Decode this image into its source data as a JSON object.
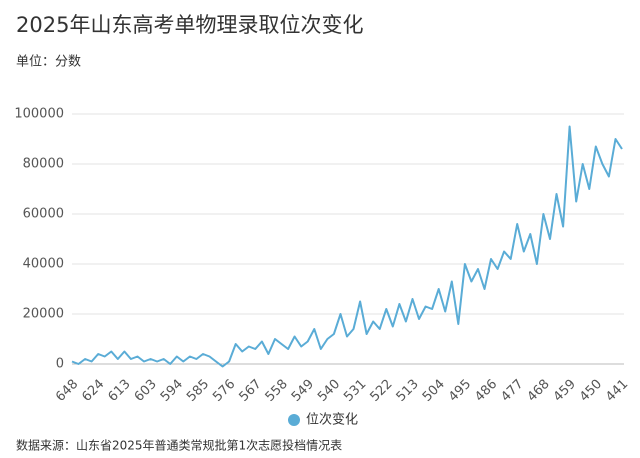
{
  "chart_data": {
    "type": "line",
    "title": "2025年山东高考单物理录取位次变化",
    "subtitle": "单位：分数",
    "source": "数据来源：山东省2025年普通类常规批第1次志愿投档情况表",
    "categories": [
      "648",
      null,
      null,
      null,
      "624",
      null,
      null,
      null,
      "613",
      null,
      null,
      null,
      "603",
      null,
      null,
      null,
      "594",
      null,
      null,
      null,
      "585",
      null,
      null,
      null,
      "576",
      null,
      null,
      null,
      "567",
      null,
      null,
      null,
      "558",
      null,
      null,
      null,
      "549",
      null,
      null,
      null,
      "540",
      null,
      null,
      null,
      "531",
      null,
      null,
      null,
      "522",
      null,
      null,
      null,
      "513",
      null,
      null,
      null,
      "504",
      null,
      null,
      null,
      "495",
      null,
      null,
      null,
      "486",
      null,
      null,
      null,
      "477",
      null,
      null,
      null,
      "468",
      null,
      null,
      null,
      "459",
      null,
      null,
      null,
      "450",
      null,
      null,
      null,
      "441"
    ],
    "series": [
      {
        "name": "位次变化",
        "color": "#5aacd6",
        "values": [
          1000,
          0,
          2000,
          1000,
          4000,
          3000,
          5000,
          2000,
          5000,
          2000,
          3000,
          1000,
          2000,
          1000,
          2000,
          0,
          3000,
          1000,
          3000,
          2000,
          4000,
          3000,
          1000,
          -1000,
          1000,
          8000,
          5000,
          7000,
          6000,
          9000,
          4000,
          10000,
          8000,
          6000,
          11000,
          7000,
          9000,
          14000,
          6000,
          10000,
          12000,
          20000,
          11000,
          14000,
          25000,
          12000,
          17000,
          14000,
          22000,
          15000,
          24000,
          17000,
          26000,
          18000,
          23000,
          22000,
          30000,
          21000,
          33000,
          16000,
          40000,
          33000,
          38000,
          30000,
          42000,
          38000,
          45000,
          42000,
          56000,
          45000,
          52000,
          40000,
          60000,
          50000,
          68000,
          55000,
          95000,
          65000,
          80000,
          70000,
          87000,
          80000,
          75000,
          90000,
          86000
        ]
      }
    ],
    "ylim": [
      0,
      100000
    ],
    "yticks": [
      0,
      20000,
      40000,
      60000,
      80000,
      100000
    ],
    "grid": true
  }
}
